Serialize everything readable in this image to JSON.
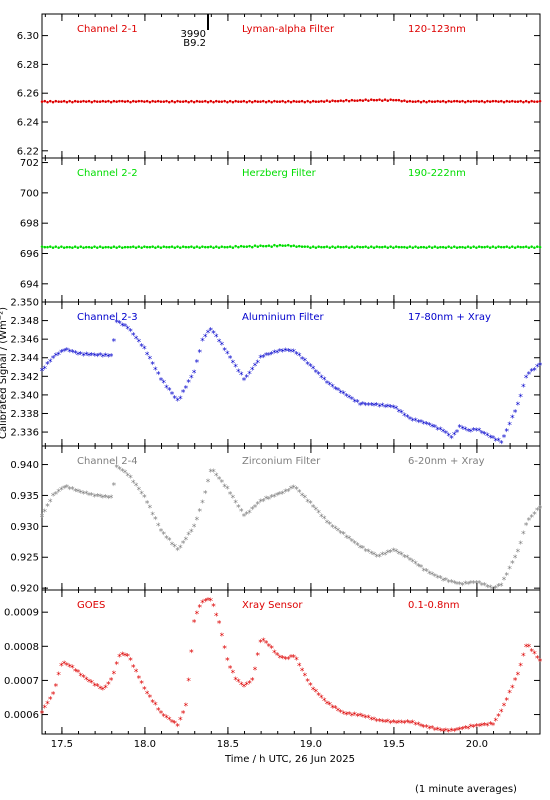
{
  "figure": {
    "xlabel": "Time / h UTC, 26 Jun 2025",
    "ylabel": "Calibrated Signal / (Wm⁻²)",
    "footnote": "(1 minute averages)",
    "marker_label_top": "3990",
    "marker_label_bottom": "B9.2",
    "marker_x": 18.38
  },
  "chart_data": [
    {
      "type": "scatter",
      "panel": "Channel 2-1",
      "filter": "Lyman-alpha Filter",
      "band": "120-123nm",
      "color": "#dd0000",
      "xlim": [
        17.38,
        20.38
      ],
      "ylim": [
        6.215,
        6.315
      ],
      "yticks": [
        6.22,
        6.24,
        6.26,
        6.28,
        6.3
      ],
      "ytick_labels": [
        "6.22",
        "6.24",
        "6.26",
        "6.28",
        "6.30"
      ],
      "series": [
        {
          "x": [
            17.38,
            18.0,
            18.5,
            19.0,
            19.4,
            19.5,
            19.6,
            20.0,
            20.38
          ],
          "y": [
            6.254,
            6.254,
            6.254,
            6.254,
            6.255,
            6.255,
            6.254,
            6.254,
            6.254
          ]
        }
      ]
    },
    {
      "type": "scatter",
      "panel": "Channel 2-2",
      "filter": "Herzberg Filter",
      "band": "190-222nm",
      "color": "#00dd00",
      "xlim": [
        17.38,
        20.38
      ],
      "ylim": [
        692.8,
        702.3
      ],
      "yticks": [
        694,
        696,
        698,
        700,
        702
      ],
      "ytick_labels": [
        "694",
        "696",
        "698",
        "700",
        "702"
      ],
      "series": [
        {
          "x": [
            17.38,
            18.0,
            18.5,
            18.85,
            19.0,
            19.5,
            20.0,
            20.38
          ],
          "y": [
            696.4,
            696.4,
            696.4,
            696.5,
            696.4,
            696.4,
            696.4,
            696.4
          ]
        }
      ]
    },
    {
      "type": "scatter",
      "panel": "Channel 2-3",
      "filter": "Aluminium Filter",
      "band": "17-80nm + Xray",
      "color": "#0000cc",
      "xlim": [
        17.38,
        20.38
      ],
      "ylim": [
        2.3345,
        2.35
      ],
      "yticks": [
        2.336,
        2.338,
        2.34,
        2.342,
        2.344,
        2.346,
        2.348,
        2.35
      ],
      "ytick_labels": [
        "2.336",
        "2.338",
        "2.340",
        "2.342",
        "2.344",
        "2.346",
        "2.348",
        "2.350"
      ],
      "series": [
        {
          "x": [
            17.38,
            17.45,
            17.52,
            17.6,
            17.7,
            17.8,
            17.83,
            17.9,
            18.0,
            18.1,
            18.2,
            18.3,
            18.35,
            18.4,
            18.5,
            18.6,
            18.7,
            18.8,
            18.85,
            18.9,
            19.0,
            19.1,
            19.2,
            19.3,
            19.4,
            19.5,
            19.6,
            19.7,
            19.8,
            19.85,
            19.9,
            19.95,
            20.0,
            20.1,
            20.15,
            20.25,
            20.3,
            20.38
          ],
          "y": [
            2.3425,
            2.344,
            2.3448,
            2.3443,
            2.3442,
            2.3441,
            2.3478,
            2.3471,
            2.3448,
            2.3415,
            2.3392,
            2.3425,
            2.346,
            2.347,
            2.3443,
            2.3415,
            2.344,
            2.3446,
            2.3447,
            2.3446,
            2.343,
            2.3412,
            2.34,
            2.3389,
            2.3388,
            2.3386,
            2.3373,
            2.3368,
            2.336,
            2.3353,
            2.3365,
            2.336,
            2.3362,
            2.3352,
            2.3348,
            2.339,
            2.342,
            2.3432
          ]
        }
      ]
    },
    {
      "type": "scatter",
      "panel": "Channel 2-4",
      "filter": "Zirconium Filter",
      "band": "6-20nm + Xray",
      "color": "#7f7f7f",
      "xlim": [
        17.38,
        20.38
      ],
      "ylim": [
        0.9197,
        0.943
      ],
      "yticks": [
        0.92,
        0.925,
        0.93,
        0.935,
        0.94
      ],
      "ytick_labels": [
        "0.920",
        "0.925",
        "0.930",
        "0.935",
        "0.940"
      ],
      "series": [
        {
          "x": [
            17.38,
            17.45,
            17.52,
            17.6,
            17.7,
            17.8,
            17.83,
            17.9,
            18.0,
            18.1,
            18.2,
            18.3,
            18.35,
            18.4,
            18.5,
            18.6,
            18.7,
            18.8,
            18.85,
            18.9,
            19.0,
            19.1,
            19.2,
            19.3,
            19.4,
            19.5,
            19.6,
            19.7,
            19.8,
            19.9,
            20.0,
            20.1,
            20.15,
            20.25,
            20.3,
            20.38
          ],
          "y": [
            0.9315,
            0.935,
            0.9363,
            0.9355,
            0.9348,
            0.9345,
            0.9395,
            0.9382,
            0.9345,
            0.929,
            0.926,
            0.93,
            0.934,
            0.9392,
            0.9358,
            0.9315,
            0.934,
            0.935,
            0.9355,
            0.9363,
            0.9335,
            0.9305,
            0.9285,
            0.9265,
            0.925,
            0.926,
            0.9245,
            0.9225,
            0.9212,
            0.9205,
            0.9208,
            0.9198,
            0.9205,
            0.926,
            0.9305,
            0.933
          ]
        }
      ]
    },
    {
      "type": "scatter",
      "panel": "GOES",
      "filter": "Xray Sensor",
      "band": "0.1-0.8nm",
      "color": "#dd0000",
      "xlim": [
        17.38,
        20.38
      ],
      "ylim": [
        0.000543,
        0.000965
      ],
      "yticks": [
        0.0006,
        0.0007,
        0.0008,
        0.0009
      ],
      "ytick_labels": [
        "0.0006",
        "0.0007",
        "0.0008",
        "0.0009"
      ],
      "series": [
        {
          "x": [
            17.38,
            17.45,
            17.5,
            17.55,
            17.65,
            17.75,
            17.8,
            17.85,
            17.9,
            18.0,
            18.1,
            18.2,
            18.25,
            18.3,
            18.35,
            18.4,
            18.45,
            18.5,
            18.55,
            18.6,
            18.65,
            18.7,
            18.75,
            18.8,
            18.85,
            18.9,
            19.0,
            19.1,
            19.2,
            19.3,
            19.4,
            19.5,
            19.6,
            19.7,
            19.8,
            19.85,
            19.9,
            20.0,
            20.1,
            20.15,
            20.25,
            20.3,
            20.38
          ],
          "y": [
            0.000605,
            0.00066,
            0.00075,
            0.00074,
            0.0007,
            0.00067,
            0.0007,
            0.000775,
            0.00077,
            0.00067,
            0.0006,
            0.000565,
            0.00063,
            0.000885,
            0.00093,
            0.000935,
            0.00086,
            0.00075,
            0.0007,
            0.00068,
            0.0007,
            0.00082,
            0.0008,
            0.00077,
            0.00076,
            0.00077,
            0.00068,
            0.00063,
            0.0006,
            0.000595,
            0.00058,
            0.000575,
            0.000575,
            0.00056,
            0.00055,
            0.00055,
            0.000555,
            0.000565,
            0.00057,
            0.00061,
            0.00072,
            0.000805,
            0.000755
          ]
        }
      ]
    }
  ]
}
